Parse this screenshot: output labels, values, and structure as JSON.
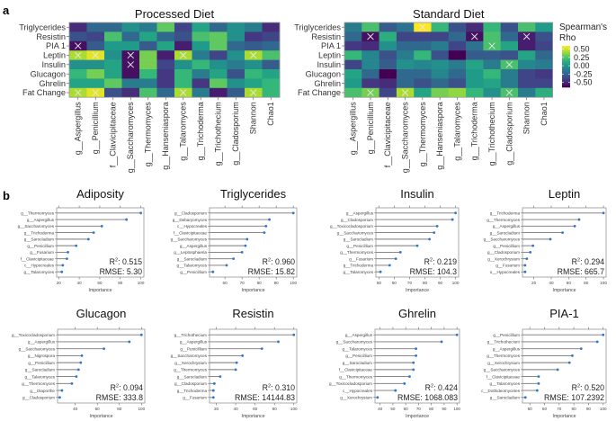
{
  "panel_labels": {
    "a": "a",
    "b": "b"
  },
  "chart_data": [
    {
      "type": "heatmap",
      "title": "Processed Diet",
      "rows": [
        "Triglycerides",
        "Resistin",
        "PIA 1",
        "Leptin",
        "Insulin",
        "Glucagon",
        "Ghrelin",
        "Fat Change"
      ],
      "columns": [
        "g__Aspergillus",
        "g__Penicillium",
        "f__Clavicipitaceae",
        "g__Saccharomyces",
        "g__Thermomyces",
        "g__Hanseniaspora",
        "g__Talaromyces",
        "g__Trichoderma",
        "g__Trichothecium",
        "g__Cladosporium",
        "Shannon",
        "Chao1"
      ],
      "values": [
        [
          -0.45,
          -0.2,
          -0.2,
          0.0,
          -0.1,
          0.3,
          -0.35,
          0.1,
          -0.2,
          0.0,
          -0.1,
          -0.45
        ],
        [
          -0.3,
          -0.35,
          0.25,
          -0.2,
          0.1,
          -0.2,
          -0.3,
          0.25,
          0.3,
          0.0,
          -0.4,
          -0.35
        ],
        [
          -0.55,
          -0.25,
          0.05,
          0.05,
          -0.25,
          0.1,
          -0.5,
          0.05,
          0.3,
          -0.2,
          -0.25,
          -0.2
        ],
        [
          0.45,
          0.55,
          0.0,
          -0.55,
          0.35,
          -0.5,
          0.45,
          -0.1,
          -0.35,
          0.0,
          0.45,
          0.25
        ],
        [
          0.0,
          0.0,
          0.1,
          -0.55,
          0.35,
          -0.35,
          0.0,
          0.2,
          0.0,
          -0.1,
          0.0,
          -0.25
        ],
        [
          0.2,
          0.35,
          0.1,
          -0.55,
          0.2,
          -0.4,
          0.2,
          -0.1,
          0.1,
          -0.3,
          0.2,
          0.1
        ],
        [
          0.1,
          0.1,
          0.3,
          -0.1,
          -0.1,
          -0.4,
          0.2,
          -0.4,
          0.3,
          0.0,
          0.1,
          0.2
        ],
        [
          0.45,
          0.55,
          -0.3,
          -0.45,
          0.25,
          -0.2,
          0.45,
          -0.1,
          -0.5,
          -0.25,
          0.45,
          0.2
        ]
      ],
      "significant": [
        [
          false,
          false,
          false,
          false,
          false,
          false,
          false,
          false,
          false,
          false,
          false,
          false
        ],
        [
          false,
          false,
          false,
          false,
          false,
          false,
          false,
          false,
          false,
          false,
          false,
          false
        ],
        [
          true,
          false,
          false,
          false,
          false,
          false,
          false,
          false,
          false,
          false,
          false,
          false
        ],
        [
          true,
          true,
          false,
          true,
          false,
          false,
          true,
          false,
          false,
          false,
          true,
          false
        ],
        [
          false,
          false,
          false,
          true,
          false,
          false,
          false,
          false,
          false,
          false,
          false,
          false
        ],
        [
          false,
          false,
          false,
          false,
          false,
          false,
          false,
          false,
          false,
          false,
          false,
          false
        ],
        [
          false,
          false,
          false,
          false,
          false,
          false,
          false,
          false,
          false,
          false,
          false,
          false
        ],
        [
          true,
          true,
          false,
          false,
          false,
          false,
          true,
          false,
          false,
          false,
          true,
          false
        ]
      ]
    },
    {
      "type": "heatmap",
      "title": "Standard Diet",
      "rows": [
        "Triglycerides",
        "Resistin",
        "PIA 1",
        "Leptin",
        "Insulin",
        "Glucagon",
        "Ghrelin",
        "Fat Change"
      ],
      "columns": [
        "g__Aspergillus",
        "g__Penicillium",
        "f__Clavicipitaceae",
        "g__Saccharomyces",
        "g__Thermomyces",
        "g__Hanseniaspora",
        "g__Talaromyces",
        "g__Trichoderma",
        "g__Trichothecium",
        "g__Cladosporium",
        "Shannon",
        "Chao1"
      ],
      "values": [
        [
          -0.1,
          0.25,
          -0.25,
          -0.15,
          0.6,
          0.2,
          -0.3,
          -0.45,
          0.2,
          -0.3,
          0.25,
          0.05
        ],
        [
          -0.2,
          -0.55,
          0.15,
          -0.35,
          -0.35,
          -0.35,
          -0.2,
          -0.55,
          0.25,
          -0.2,
          -0.5,
          -0.3
        ],
        [
          -0.4,
          -0.45,
          0.0,
          -0.2,
          -0.2,
          -0.1,
          -0.35,
          -0.15,
          0.25,
          0.1,
          -0.5,
          -0.35
        ],
        [
          0.2,
          -0.05,
          -0.3,
          -0.1,
          0.2,
          -0.3,
          -0.6,
          -0.25,
          -0.25,
          -0.3,
          0.1,
          -0.2
        ],
        [
          -0.35,
          -0.05,
          -0.25,
          0.0,
          -0.05,
          0.0,
          -0.1,
          0.1,
          -0.1,
          0.25,
          -0.05,
          -0.1
        ],
        [
          0.1,
          -0.2,
          -0.65,
          -0.2,
          -0.2,
          -0.05,
          -0.2,
          0.05,
          0.2,
          -0.1,
          -0.35,
          -0.4
        ],
        [
          0.05,
          -0.4,
          -0.45,
          -0.2,
          -0.3,
          -0.2,
          -0.3,
          0.05,
          0.1,
          -0.1,
          -0.35,
          -0.35
        ],
        [
          0.25,
          0.35,
          -0.35,
          0.45,
          0.1,
          0.35,
          0.4,
          0.2,
          0.0,
          0.25,
          -0.1,
          0.15
        ]
      ],
      "significant": [
        [
          false,
          false,
          false,
          false,
          true,
          false,
          false,
          false,
          false,
          false,
          false,
          false
        ],
        [
          false,
          true,
          false,
          false,
          false,
          false,
          false,
          true,
          false,
          false,
          true,
          false
        ],
        [
          false,
          false,
          false,
          false,
          false,
          false,
          false,
          false,
          true,
          false,
          false,
          false
        ],
        [
          false,
          false,
          false,
          false,
          false,
          false,
          false,
          false,
          false,
          false,
          false,
          false
        ],
        [
          false,
          false,
          false,
          false,
          false,
          false,
          false,
          false,
          false,
          true,
          false,
          false
        ],
        [
          false,
          false,
          false,
          false,
          false,
          false,
          false,
          false,
          false,
          false,
          false,
          false
        ],
        [
          false,
          false,
          false,
          false,
          false,
          false,
          false,
          false,
          false,
          false,
          false,
          false
        ],
        [
          false,
          true,
          false,
          true,
          false,
          false,
          false,
          false,
          false,
          true,
          false,
          false
        ]
      ],
      "legend": {
        "title_line1": "Spearman's",
        "title_line2": "Rho",
        "ticks": [
          "0.50",
          "0.25",
          "0.00",
          "-0.25",
          "-0.50"
        ],
        "tick_values": [
          0.5,
          0.25,
          0.0,
          -0.25,
          -0.5
        ],
        "range": [
          -0.65,
          0.6
        ],
        "placement": "right"
      }
    },
    {
      "type": "lollipop",
      "title": "Adiposity",
      "xlabel": "Importance",
      "features": [
        "g__Thermomyces",
        "g__Aspergillus",
        "g__Saccharomyces",
        "g__Trichoderma",
        "g__Sarocladium",
        "g__Penicillium",
        "g__Fusarium",
        "f__Clavicipitaceae",
        "c__Hypocreales",
        "g__Talaromyces"
      ],
      "values": [
        100,
        86,
        62,
        54,
        49,
        37,
        29,
        28,
        24,
        23
      ],
      "xticks": [
        20,
        40,
        60,
        80,
        100
      ],
      "xlim": [
        18,
        103
      ],
      "r2": "0.515",
      "rmse": "5.30"
    },
    {
      "type": "lollipop",
      "title": "Triglycerides",
      "xlabel": "Importance",
      "features": [
        "g__Cladosporium",
        "g__Debaryomyces",
        "c__Hypocreales",
        "f__Clavicipitaceae",
        "g__Saccharomyces",
        "g__Aspergillus",
        "g__Leptosphaeria",
        "g__Sarocladium",
        "g__Talaromyces",
        "g__Penicillium"
      ],
      "values": [
        100,
        86,
        84,
        83,
        73,
        72,
        70,
        65,
        61,
        53
      ],
      "xticks": [
        60,
        70,
        80,
        90,
        100
      ],
      "xlim": [
        51,
        102
      ],
      "r2": "0.960",
      "rmse": "15.82"
    },
    {
      "type": "lollipop",
      "title": "Insulin",
      "xlabel": "Importance",
      "features": [
        "g__Aspergillus",
        "g__Cladosporium",
        "g__Toxicocladosporium",
        "g__Saccharomyces",
        "g__Sarocladium",
        "g__Penicillium",
        "g__Thermomyces",
        "g__Fusarium",
        "g__Trichoderma",
        "g__Talaromyces"
      ],
      "values": [
        100,
        98,
        88,
        86,
        83,
        75,
        64,
        61,
        57,
        51
      ],
      "xticks": [
        50,
        60,
        70,
        80,
        90,
        100
      ],
      "xlim": [
        48,
        102
      ],
      "r2": "0.219",
      "rmse": "104.3"
    },
    {
      "type": "lollipop",
      "title": "Leptin",
      "xlabel": "Importance",
      "features": [
        "g__Trichoderma",
        "g__Thermomyces",
        "g__Aspergillus",
        "g__Sarocladium",
        "g__Saccharomyces",
        "g__Penicillium",
        "g__Cladosporium",
        "g__Xerochrysium",
        "g__Fusarium",
        "o__Hypocreales"
      ],
      "values": [
        100,
        72,
        67,
        53,
        39,
        19,
        16,
        12,
        10,
        10
      ],
      "xticks": [
        20,
        40,
        60,
        80,
        100
      ],
      "xlim": [
        7,
        103
      ],
      "r2": "0.294",
      "rmse": "665.7"
    },
    {
      "type": "lollipop",
      "title": "Glucagon",
      "xlabel": "Importance",
      "features": [
        "g__Toxicocladosporium",
        "g__Aspergillus",
        "g__Saccharomyces",
        "g__Nigrospora",
        "g__Penicillium",
        "g__Sarocladium",
        "g__Talaromyces",
        "g__Thermomyces",
        "g__Diaporthe",
        "g__Cladosporium"
      ],
      "values": [
        100,
        89,
        66,
        46,
        45,
        43,
        41,
        37,
        28,
        26
      ],
      "xticks": [
        40,
        60,
        80,
        100
      ],
      "xlim": [
        24,
        103
      ],
      "r2": "0.094",
      "rmse": "333.8"
    },
    {
      "type": "lollipop",
      "title": "Resistin",
      "xlabel": "Importance",
      "features": [
        "g__Trichothecium",
        "g__Aspergillus",
        "g__Penicillium",
        "g__Saccharomyces",
        "g__Xerochrysium",
        "g__Thermomyces",
        "g__Sarocladium",
        "g__Cladosporium",
        "g__Trichoderma",
        "g__Fusarium"
      ],
      "values": [
        100,
        84,
        67,
        47,
        41,
        40,
        24,
        18,
        17,
        17
      ],
      "xticks": [
        20,
        40,
        60,
        80,
        100
      ],
      "xlim": [
        13,
        103
      ],
      "r2": "0.310",
      "rmse": "14144.83"
    },
    {
      "type": "lollipop",
      "title": "Ghrelin",
      "xlabel": "Importance",
      "features": [
        "g__Aspergillus",
        "g__Saccharomyces",
        "g__Talaromyces",
        "g__Penicillium",
        "g__Sarocladium",
        "f__Clavicipitaceae",
        "g__Thermomyces",
        "g__Toxicocladosporium",
        "c__Hypocreales",
        "g__Xerochrysium"
      ],
      "values": [
        100,
        88,
        68,
        68,
        66,
        66,
        63,
        59,
        52,
        38
      ],
      "xticks": [
        40,
        50,
        60,
        70,
        80,
        90,
        100
      ],
      "xlim": [
        36,
        102
      ],
      "r2": "0.424",
      "rmse": "1068.083"
    },
    {
      "type": "lollipop",
      "title": "PIA-1",
      "xlabel": "Importance",
      "features": [
        "g__Penicillium",
        "g__Trichothecium",
        "g__Aspergillus",
        "g__Thermomyces",
        "g__Xerochrysium",
        "g__Saccharomyces",
        "f__Clavicipitaceae",
        "g__Talaromyces",
        "c__Dothideomycetes",
        "g__Sarocladium"
      ],
      "values": [
        100,
        96,
        85,
        79,
        77,
        69,
        56,
        56,
        55,
        47
      ],
      "xticks": [
        50,
        60,
        70,
        80,
        90,
        100
      ],
      "xlim": [
        45,
        102
      ],
      "r2": "0.520",
      "rmse": "107.2392"
    }
  ]
}
